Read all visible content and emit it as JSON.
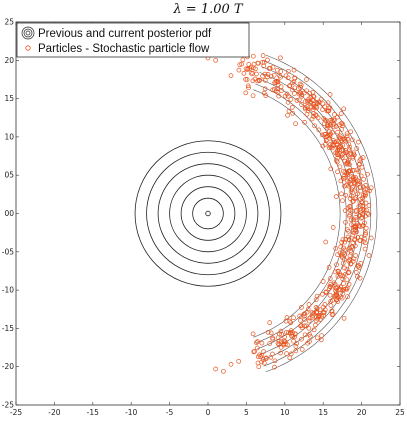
{
  "chart_data": {
    "type": "scatter",
    "title": "λ = 1.00 T",
    "xlabel": "",
    "ylabel": "",
    "xlim": [
      -25,
      25
    ],
    "ylim": [
      -25,
      25
    ],
    "xticks": [
      "-25",
      "-20",
      "-15",
      "-10",
      "-5",
      "0",
      "5",
      "10",
      "15",
      "20",
      "25"
    ],
    "yticks": [
      "25",
      "20",
      "15",
      "10",
      "05",
      "00",
      "-05",
      "-10",
      "-15",
      "-20",
      "-25"
    ],
    "grid": false,
    "legend_position": "top-left",
    "legend": [
      {
        "label": "Previous and current posterior pdf",
        "marker": "concentric-circles",
        "color": "#222222"
      },
      {
        "label": "Particles - Stochastic particle flow",
        "marker": "hollow-circle",
        "color": "#e8531e"
      }
    ],
    "contours": {
      "center": [
        0,
        0
      ],
      "radii": [
        0.3,
        2.0,
        3.5,
        5.0,
        6.5,
        8.0,
        9.5
      ],
      "color": "#222222"
    },
    "arc_contours": {
      "center": [
        0,
        0
      ],
      "angle_range_deg": [
        -70,
        70
      ],
      "radii": [
        17.2,
        18.0,
        18.8,
        19.6,
        20.4,
        21.2,
        22.0
      ],
      "color": "#555555"
    },
    "particles": {
      "color": "#e8531e",
      "count": 650,
      "band_center": [
        0,
        0
      ],
      "band_radius_mean": 19.5,
      "band_radius_spread": 1.3,
      "angle_range_deg": [
        -72,
        78
      ],
      "outliers": [
        [
          0,
          20.3
        ],
        [
          1,
          20
        ],
        [
          3,
          18
        ],
        [
          6,
          19.5
        ],
        [
          2,
          -20.6
        ],
        [
          1,
          -20.3
        ],
        [
          3,
          -19.7
        ],
        [
          4,
          -19.3
        ],
        [
          7,
          -18.5
        ]
      ]
    }
  }
}
